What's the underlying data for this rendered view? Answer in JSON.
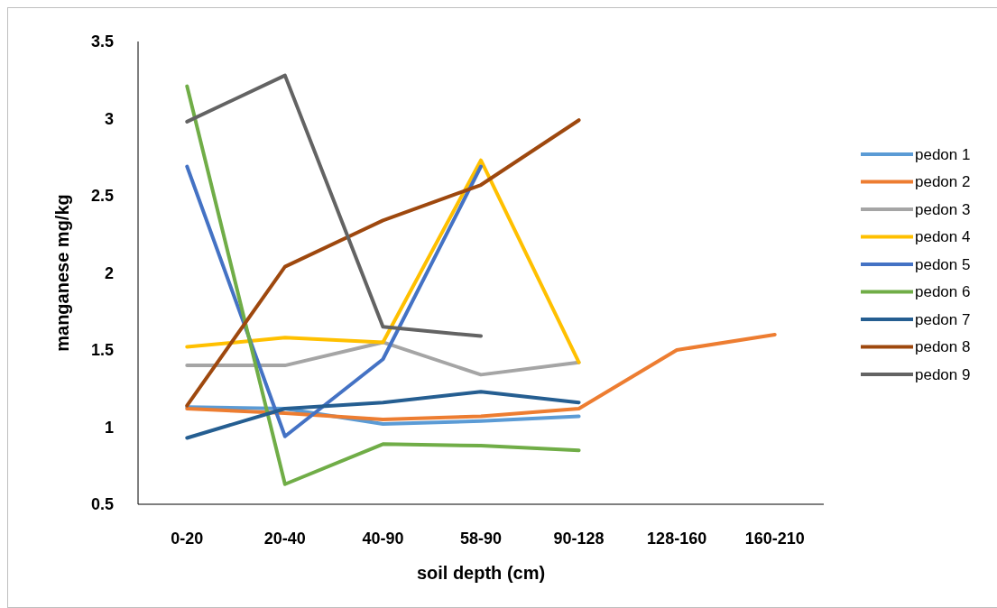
{
  "chart_data": {
    "type": "line",
    "xlabel": "soil depth (cm)",
    "ylabel": "manganese mg/kg",
    "categories": [
      "0-20",
      "20-40",
      "40-90",
      "58-90",
      "90-128",
      "128-160",
      "160-210"
    ],
    "ylim": [
      0.5,
      3.5
    ],
    "yticks": [
      0.5,
      1,
      1.5,
      2,
      2.5,
      3,
      3.5
    ],
    "grid": false,
    "legend": "right",
    "marker": "none",
    "series": [
      {
        "name": "pedon 1",
        "color": "#5b9bd5",
        "values": [
          1.13,
          1.12,
          1.02,
          1.04,
          1.07,
          null,
          null
        ]
      },
      {
        "name": "pedon 2",
        "color": "#ed7d31",
        "values": [
          1.12,
          1.09,
          1.05,
          1.07,
          1.12,
          1.5,
          1.6
        ]
      },
      {
        "name": "pedon 3",
        "color": "#a5a5a5",
        "values": [
          1.4,
          1.4,
          1.55,
          1.34,
          1.42,
          null,
          null
        ]
      },
      {
        "name": "pedon 4",
        "color": "#ffc000",
        "values": [
          1.52,
          1.58,
          1.55,
          2.73,
          1.42,
          null,
          null
        ]
      },
      {
        "name": "pedon 5",
        "color": "#4472c4",
        "values": [
          2.69,
          0.94,
          1.44,
          2.69,
          null,
          null,
          null
        ]
      },
      {
        "name": "pedon 6",
        "color": "#70ad47",
        "values": [
          3.21,
          0.63,
          0.89,
          0.88,
          0.85,
          null,
          null
        ]
      },
      {
        "name": "pedon 7",
        "color": "#255e91",
        "values": [
          0.93,
          1.12,
          1.16,
          1.23,
          1.16,
          null,
          null
        ]
      },
      {
        "name": "pedon 8",
        "color": "#9e480e",
        "values": [
          1.14,
          2.04,
          2.34,
          2.57,
          2.99,
          null,
          null
        ]
      },
      {
        "name": "pedon 9",
        "color": "#636363",
        "values": [
          2.98,
          3.28,
          1.65,
          1.59,
          null,
          null,
          null
        ]
      }
    ]
  }
}
